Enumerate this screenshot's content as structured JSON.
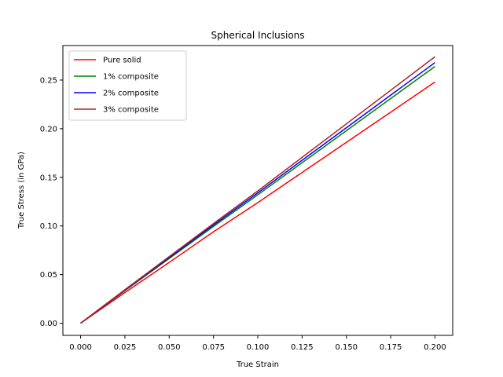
{
  "chart_data": {
    "type": "line",
    "title": "Spherical Inclusions",
    "xlabel": "True Strain",
    "ylabel": "True Stress (in GPa)",
    "xlim": [
      -0.01,
      0.21
    ],
    "ylim": [
      -0.0125,
      0.2855
    ],
    "x_ticks": [
      0.0,
      0.025,
      0.05,
      0.075,
      0.1,
      0.125,
      0.15,
      0.175,
      0.2
    ],
    "x_tick_labels": [
      "0.000",
      "0.025",
      "0.050",
      "0.075",
      "0.100",
      "0.125",
      "0.150",
      "0.175",
      "0.200"
    ],
    "y_ticks": [
      0.0,
      0.05,
      0.1,
      0.15,
      0.2,
      0.25
    ],
    "y_tick_labels": [
      "0.00",
      "0.05",
      "0.10",
      "0.15",
      "0.20",
      "0.25"
    ],
    "grid": false,
    "legend_position": "top-left",
    "x": [
      0.0,
      0.025,
      0.05,
      0.075,
      0.1,
      0.125,
      0.15,
      0.175,
      0.2
    ],
    "series": [
      {
        "name": "Pure solid",
        "color": "#ff0000",
        "values": [
          0.0,
          0.0315,
          0.0625,
          0.094,
          0.124,
          0.155,
          0.186,
          0.217,
          0.248
        ]
      },
      {
        "name": "1% composite",
        "color": "#008000",
        "values": [
          0.0,
          0.0335,
          0.0665,
          0.0995,
          0.132,
          0.165,
          0.198,
          0.231,
          0.264
        ]
      },
      {
        "name": "2% composite",
        "color": "#0000ff",
        "values": [
          0.0,
          0.034,
          0.0675,
          0.101,
          0.134,
          0.1675,
          0.201,
          0.2345,
          0.268
        ]
      },
      {
        "name": "3% composite",
        "color": "#b22222",
        "values": [
          0.0,
          0.0345,
          0.0685,
          0.1025,
          0.136,
          0.1705,
          0.205,
          0.2395,
          0.274
        ]
      }
    ]
  }
}
